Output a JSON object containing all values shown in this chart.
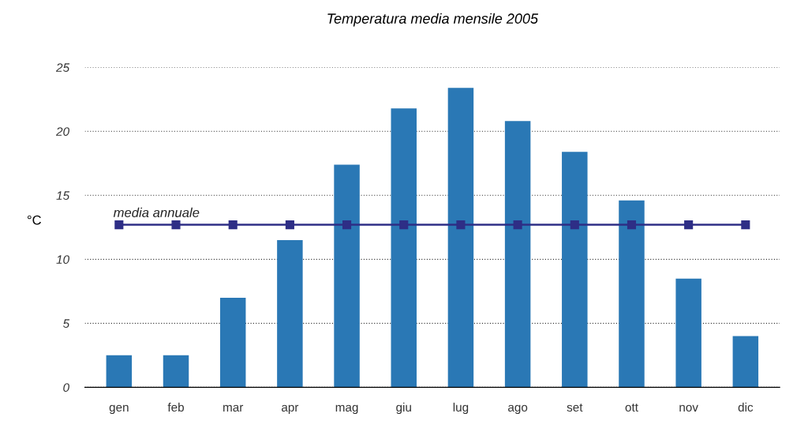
{
  "chart_data": {
    "type": "bar",
    "title": "Temperatura media mensile 2005",
    "ylabel": "°C",
    "categories": [
      "gen",
      "feb",
      "mar",
      "apr",
      "mag",
      "giu",
      "lug",
      "ago",
      "set",
      "ott",
      "nov",
      "dic"
    ],
    "series": [
      {
        "color": "#2a78b5",
        "values": [
          2.5,
          2.5,
          7.0,
          11.5,
          17.4,
          21.8,
          23.4,
          20.8,
          18.4,
          14.6,
          8.5,
          4.0
        ]
      },
      {
        "type": "line",
        "name": "media annuale",
        "color": "#2e2e86",
        "marker": "square",
        "values": [
          12.7,
          12.7,
          12.7,
          12.7,
          12.7,
          12.7,
          12.7,
          12.7,
          12.7,
          12.7,
          12.7,
          12.7
        ]
      }
    ],
    "ylim": [
      0,
      25
    ],
    "yticks": [
      0,
      5,
      10,
      15,
      20,
      25
    ],
    "grid": "y",
    "legend": false
  }
}
